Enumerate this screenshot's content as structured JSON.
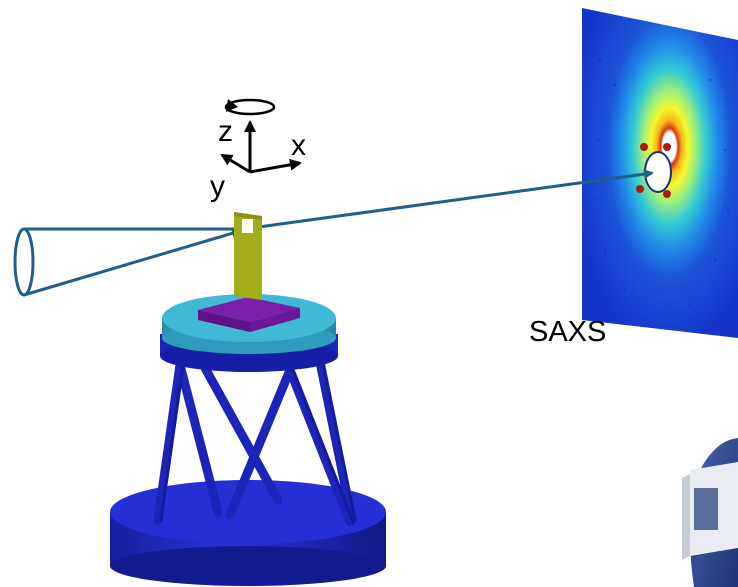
{
  "axes": {
    "z_label": "z",
    "x_label": "x",
    "y_label": "y"
  },
  "detector": {
    "label": "SAXS"
  },
  "colors": {
    "beam": "#1f5f8b",
    "sample_holder": "#a3ad1c",
    "sample_base": "#7a1fa8",
    "stage_top": "#36a9c6",
    "hexapod_blue": "#1b25b8",
    "detector_background": "#1535c9"
  }
}
